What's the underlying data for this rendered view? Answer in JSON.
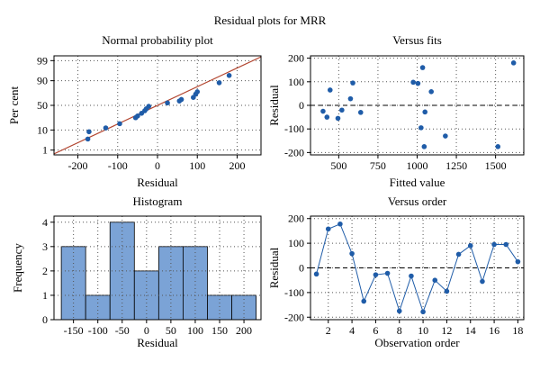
{
  "figure": {
    "title": "Residual plots for MRR"
  },
  "chart_data": [
    {
      "type": "scatter",
      "title": "Normal probability plot",
      "xlabel": "Residual",
      "ylabel": "Per cent",
      "xlim": [
        -260,
        260
      ],
      "x_ticks": [
        -200,
        -100,
        0,
        100,
        200
      ],
      "y_scale": "probit",
      "y_ticks": [
        1,
        10,
        50,
        90,
        99
      ],
      "y_tick_labels": [
        "1",
        "10",
        "50",
        "90",
        "99"
      ],
      "grid": true,
      "fit_line": {
        "color": "#b2452f",
        "mean": 0,
        "sd": 103
      },
      "points": [
        {
          "x": -175,
          "y": 4
        },
        {
          "x": -172,
          "y": 8.5
        },
        {
          "x": -130,
          "y": 12
        },
        {
          "x": -95,
          "y": 17
        },
        {
          "x": -55,
          "y": 26
        },
        {
          "x": -50,
          "y": 29
        },
        {
          "x": -40,
          "y": 34
        },
        {
          "x": -32,
          "y": 39
        },
        {
          "x": -28,
          "y": 43
        },
        {
          "x": -22,
          "y": 48
        },
        {
          "x": 25,
          "y": 55
        },
        {
          "x": 55,
          "y": 59
        },
        {
          "x": 60,
          "y": 62
        },
        {
          "x": 90,
          "y": 66
        },
        {
          "x": 96,
          "y": 72
        },
        {
          "x": 100,
          "y": 76
        },
        {
          "x": 155,
          "y": 88
        },
        {
          "x": 180,
          "y": 94
        }
      ],
      "point_color": "#1f5ca8"
    },
    {
      "type": "scatter",
      "title": "Versus fits",
      "xlabel": "Fitted value",
      "ylabel": "Residual",
      "xlim": [
        320,
        1680
      ],
      "ylim": [
        -210,
        210
      ],
      "x_ticks": [
        500,
        750,
        1000,
        1250,
        1500
      ],
      "y_ticks": [
        -200,
        -100,
        0,
        100,
        200
      ],
      "grid": true,
      "zero_line": true,
      "points": [
        {
          "x": 400,
          "y": -25
        },
        {
          "x": 425,
          "y": -50
        },
        {
          "x": 445,
          "y": 65
        },
        {
          "x": 495,
          "y": -55
        },
        {
          "x": 520,
          "y": -20
        },
        {
          "x": 575,
          "y": 28
        },
        {
          "x": 590,
          "y": 95
        },
        {
          "x": 640,
          "y": -30
        },
        {
          "x": 975,
          "y": 98
        },
        {
          "x": 1005,
          "y": 93
        },
        {
          "x": 1025,
          "y": -95
        },
        {
          "x": 1035,
          "y": 160
        },
        {
          "x": 1045,
          "y": -175
        },
        {
          "x": 1050,
          "y": -28
        },
        {
          "x": 1090,
          "y": 58
        },
        {
          "x": 1180,
          "y": -130
        },
        {
          "x": 1515,
          "y": -175
        },
        {
          "x": 1615,
          "y": 180
        }
      ],
      "point_color": "#1f5ca8"
    },
    {
      "type": "bar",
      "title": "Histogram",
      "xlabel": "Residual",
      "ylabel": "Frequency",
      "xlim": [
        -190,
        235
      ],
      "ylim": [
        0,
        4.25
      ],
      "x_ticks": [
        -150,
        -100,
        -50,
        0,
        50,
        100,
        150,
        200
      ],
      "y_ticks": [
        0,
        1,
        2,
        3,
        4
      ],
      "grid": true,
      "bins": [
        {
          "from": -175,
          "to": -125,
          "count": 3
        },
        {
          "from": -125,
          "to": -75,
          "count": 1
        },
        {
          "from": -75,
          "to": -25,
          "count": 4
        },
        {
          "from": -25,
          "to": 25,
          "count": 2
        },
        {
          "from": 25,
          "to": 75,
          "count": 3
        },
        {
          "from": 75,
          "to": 125,
          "count": 3
        },
        {
          "from": 125,
          "to": 175,
          "count": 1
        },
        {
          "from": 175,
          "to": 225,
          "count": 1
        }
      ],
      "bar_color": "#7ba3d6"
    },
    {
      "type": "line",
      "title": "Versus order",
      "xlabel": "Observation order",
      "ylabel": "Residual",
      "xlim": [
        0.5,
        18.5
      ],
      "ylim": [
        -210,
        210
      ],
      "x_ticks": [
        2,
        4,
        6,
        8,
        10,
        12,
        14,
        16,
        18
      ],
      "y_ticks": [
        -200,
        -100,
        0,
        100,
        200
      ],
      "grid": true,
      "zero_line": true,
      "x": [
        1,
        2,
        3,
        4,
        5,
        6,
        7,
        8,
        9,
        10,
        11,
        12,
        13,
        14,
        15,
        16,
        17,
        18
      ],
      "values": [
        -25,
        158,
        178,
        58,
        -135,
        -28,
        -22,
        -175,
        -33,
        -178,
        -50,
        -95,
        55,
        90,
        -55,
        95,
        95,
        25
      ],
      "point_color": "#1f5ca8"
    }
  ]
}
